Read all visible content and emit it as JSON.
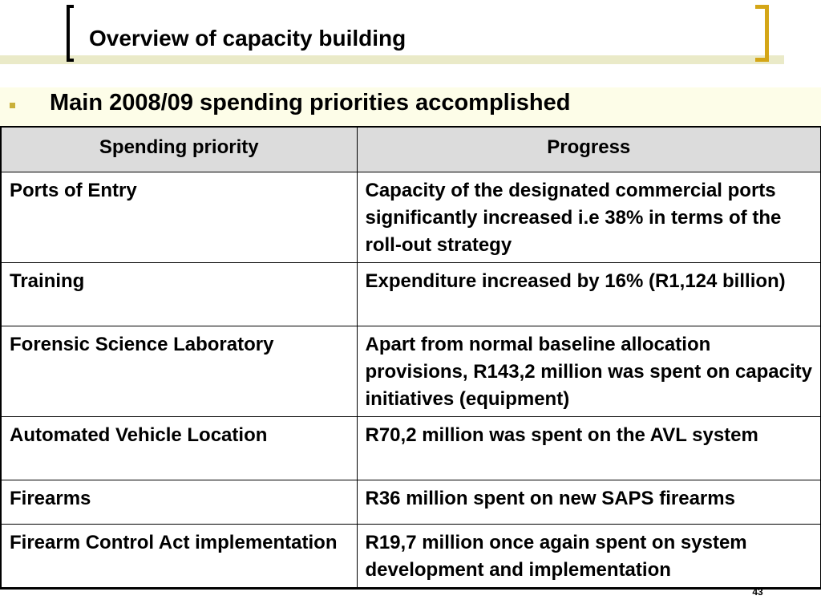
{
  "slide": {
    "title": "Overview of capacity building",
    "subtitle": "Main 2008/09 spending priorities accomplished",
    "page_number": "43"
  },
  "table": {
    "headers": [
      "Spending priority",
      "Progress"
    ],
    "rows": [
      [
        "Ports of Entry",
        "Capacity of the designated commercial ports significantly increased i.e 38% in terms of the roll-out strategy"
      ],
      [
        "Training",
        "Expenditure increased by 16% (R1,124 billion)"
      ],
      [
        "Forensic Science Laboratory",
        "Apart from normal baseline allocation provisions, R143,2 million was spent on capacity initiatives (equipment)"
      ],
      [
        "Automated Vehicle Location",
        "R70,2 million was spent on the AVL system"
      ],
      [
        "Firearms",
        "R36 million spent on new SAPS firearms"
      ],
      [
        "Firearm Control Act implementation",
        "R19,7 million once again spent on system development and implementation"
      ]
    ]
  },
  "colors": {
    "bracket_left": "#000000",
    "bracket_right": "#d4a617",
    "title_band": "#eaeac8",
    "subtitle_strip": "#fdfde8",
    "bullet": "#c9b03a",
    "header_fill": "#dcdcdc"
  }
}
